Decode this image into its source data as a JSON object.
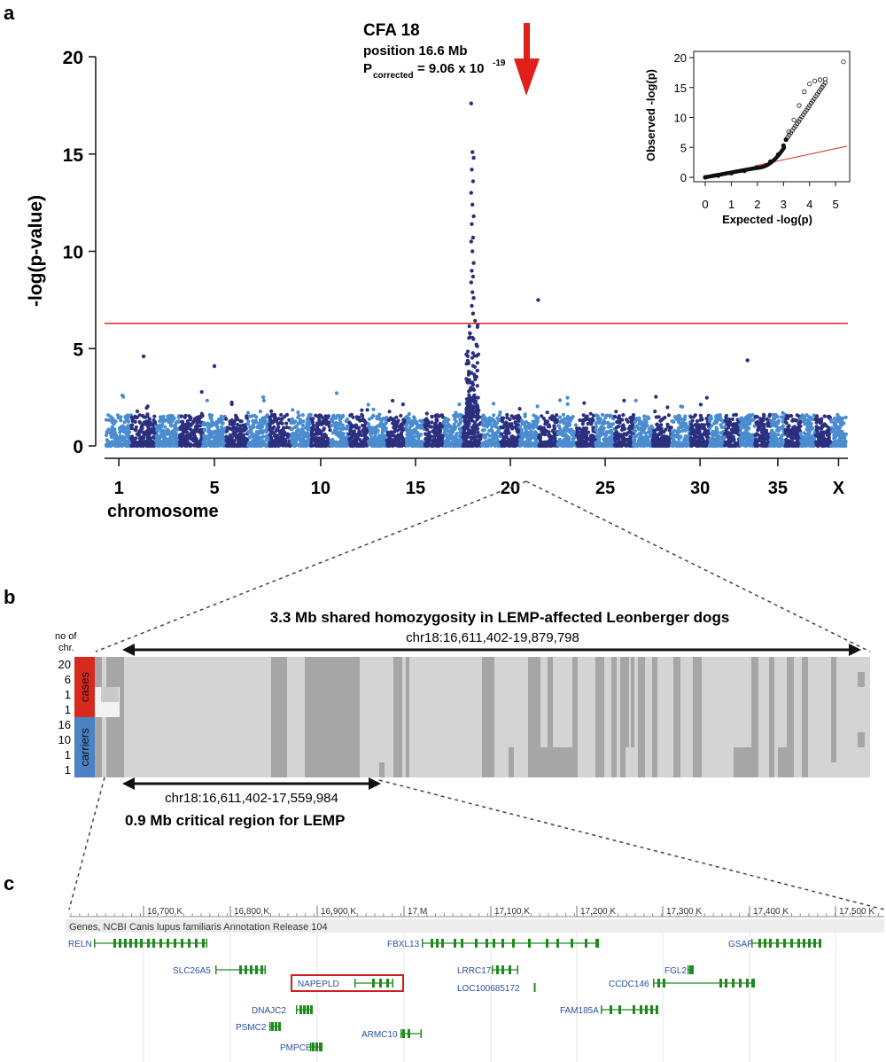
{
  "panel_letters": [
    "a",
    "b",
    "c"
  ],
  "panel_a": {
    "annotation": {
      "locus": "CFA 18",
      "position": "position 16.6 Mb",
      "p_label": "P",
      "p_sub": "corrected",
      "p_value_text": "= 9.06 x 10",
      "p_exp": "-19",
      "arrow_color": "#e0201b"
    },
    "ylabel": "-log(p-value)",
    "xlabel": "chromosome",
    "colors": {
      "dark": "#2b2f7e",
      "light": "#4a8ccf",
      "threshold": "#d62a20"
    }
  },
  "panel_b": {
    "title": "3.3 Mb shared homozygosity in LEMP-affected Leonberger dogs",
    "top_range": "chr18:16,611,402-19,879,798",
    "bottom_range": "chr18:16,611,402-17,559,984",
    "bottom_title": "0.9 Mb critical region for LEMP",
    "header_line1": "no of",
    "header_line2": "chr.",
    "row_counts": [
      "20",
      "6",
      "1",
      "1",
      "16",
      "10",
      "1",
      "1"
    ],
    "group_cases": "cases",
    "group_carriers": "carriers",
    "colors": {
      "cases": "#d8291f",
      "carriers": "#4a82c4",
      "light": "#d4d4d4",
      "dark": "#a6a6a6",
      "white": "#f2f2f2"
    }
  },
  "panel_c": {
    "ruler_ticks": [
      "16,700 K",
      "16,800 K",
      "16,900 K",
      "17 M",
      "17,100 K",
      "17,200 K",
      "17,300 K",
      "17,400 K",
      "17,500 K"
    ],
    "track_label": "Genes, NCBI Canis lupus familiaris Annotation Release 104",
    "genes": [
      "RELN",
      "SLC26A5",
      "NAPEPLD",
      "DNAJC2",
      "PSMC2",
      "PMPCB",
      "FBXL13",
      "LRRC17",
      "LOC100685172",
      "ARMC10",
      "FGL2",
      "GSAP",
      "CCDC146",
      "FAM185A"
    ],
    "highlight_gene": "NAPEPLD",
    "colors": {
      "gene": "#1e8a1e",
      "label": "#2b4fa0",
      "highlight": "#cc1f1f"
    }
  },
  "chart_data": [
    {
      "type": "scatter",
      "title": "",
      "xlabel": "chromosome",
      "ylabel": "-log(p-value)",
      "ylim": [
        0,
        20
      ],
      "yticks": [
        0,
        5,
        10,
        15,
        20
      ],
      "xtick_labels": [
        "1",
        "5",
        "10",
        "15",
        "20",
        "25",
        "30",
        "35",
        "X"
      ],
      "threshold": 6.3,
      "series": [
        {
          "name": "",
          "x": [
            "CFA18",
            "CFA18",
            "CFA18",
            "CFA18",
            "CFA18",
            "CFA18",
            "CFA18",
            "CFA18",
            "CFA18",
            "CFA18",
            "CFA18",
            "CFA18",
            "CFA18",
            "CFA18",
            "CFA18",
            "CFA18",
            "CFA18",
            "CFA18",
            "CFA18",
            "CFA18",
            "CFA21",
            "CFA2",
            "CFA33",
            "CFA5"
          ],
          "values": [
            17.6,
            15.1,
            14.8,
            14.2,
            13.6,
            13.0,
            12.4,
            11.8,
            11.4,
            10.7,
            10.5,
            10.0,
            9.4,
            9.0,
            8.7,
            8.4,
            7.9,
            7.6,
            7.2,
            6.8,
            7.5,
            4.6,
            4.4,
            4.1
          ]
        }
      ]
    },
    {
      "type": "scatter",
      "title": "",
      "xlabel": "Expected -log(p)",
      "ylabel": "Observed -log(p)",
      "xlim": [
        0,
        5.3
      ],
      "ylim": [
        0,
        20
      ],
      "xticks": [
        0,
        1,
        2,
        3,
        4,
        5
      ],
      "yticks": [
        0,
        5,
        10,
        15,
        20
      ],
      "series": [
        {
          "name": "",
          "x": [
            0,
            0.5,
            1.0,
            1.5,
            2.0,
            2.5,
            2.8,
            3.0,
            3.1,
            3.2,
            3.4,
            3.6,
            3.8,
            4.0,
            4.2,
            4.4,
            4.6,
            5.3
          ],
          "values": [
            0,
            0.3,
            0.7,
            1.1,
            1.6,
            2.6,
            3.8,
            5.3,
            6.3,
            7.6,
            9.6,
            12.0,
            14.3,
            15.6,
            16.1,
            16.3,
            16.4,
            19.3
          ]
        }
      ]
    }
  ]
}
